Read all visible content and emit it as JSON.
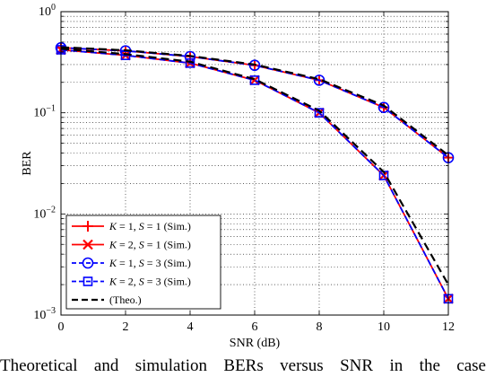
{
  "caption": "Theoretical and simulation BERs versus SNR in the case",
  "chart_data": {
    "type": "line",
    "xlabel": "SNR (dB)",
    "ylabel": "BER",
    "xlim": [
      0,
      12
    ],
    "ylim": [
      0.001,
      1
    ],
    "yscale": "log",
    "grid": true,
    "legend_position": "bottom-left",
    "x_ticks": [
      "0",
      "2",
      "4",
      "6",
      "8",
      "10",
      "12"
    ],
    "y_ticks": [
      {
        "base": "10",
        "exp": "0"
      },
      {
        "base": "10",
        "exp": "−1"
      },
      {
        "base": "10",
        "exp": "−2"
      },
      {
        "base": "10",
        "exp": "−3"
      }
    ],
    "x": [
      0,
      2,
      4,
      6,
      8,
      10,
      12
    ],
    "series": [
      {
        "name": "K = 1, S = 1 (Sim.)",
        "legend": {
          "k": "1",
          "s": "1",
          "tag": "(Sim.)"
        },
        "color": "#ff0000",
        "marker": "plus",
        "dash": "solid",
        "values": [
          0.44,
          0.41,
          0.36,
          0.295,
          0.21,
          0.113,
          0.036
        ]
      },
      {
        "name": "K = 2, S = 1 (Sim.)",
        "legend": {
          "k": "2",
          "s": "1",
          "tag": "(Sim.)"
        },
        "color": "#ff0000",
        "marker": "x",
        "dash": "solid",
        "values": [
          0.42,
          0.37,
          0.31,
          0.21,
          0.1,
          0.024,
          0.00145
        ]
      },
      {
        "name": "K = 1, S = 3 (Sim.)",
        "legend": {
          "k": "1",
          "s": "3",
          "tag": "(Sim.)"
        },
        "color": "#0000ff",
        "marker": "circle",
        "dash": "dashed",
        "values": [
          0.44,
          0.41,
          0.36,
          0.295,
          0.21,
          0.113,
          0.036
        ]
      },
      {
        "name": "K = 2, S = 3 (Sim.)",
        "legend": {
          "k": "2",
          "s": "3",
          "tag": "(Sim.)"
        },
        "color": "#0000ff",
        "marker": "square",
        "dash": "dashed",
        "values": [
          0.42,
          0.37,
          0.31,
          0.21,
          0.1,
          0.024,
          0.00145
        ]
      },
      {
        "name": "(Theo.)",
        "legend": {
          "tag": "(Theo.)"
        },
        "color": "#000000",
        "marker": "none",
        "dash": "dashed",
        "theo_pair": true,
        "values": [
          0.445,
          0.415,
          0.365,
          0.3,
          0.215,
          0.118,
          0.038
        ],
        "values2": [
          0.43,
          0.38,
          0.32,
          0.215,
          0.105,
          0.026,
          0.002
        ]
      }
    ]
  }
}
